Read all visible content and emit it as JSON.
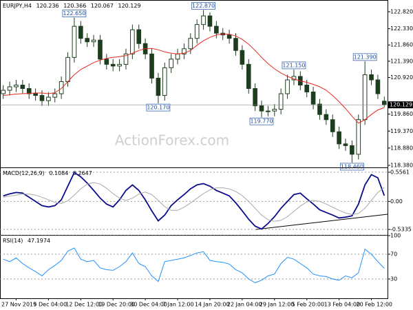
{
  "chart_data": [
    {
      "type": "candlestick",
      "title": "EURJPY,H4",
      "watermark": "ActionForex.com",
      "categories": [
        null,
        null,
        "27 Nov 2019",
        null,
        null,
        null,
        null,
        "5 Dec 04:00",
        null,
        null,
        null,
        null,
        "12 Dec 12:00",
        null,
        null,
        null,
        null,
        "19 Dec 20:00",
        null,
        null,
        null,
        null,
        "30 Dec 04:00",
        null,
        null,
        null,
        null,
        "7 Jan 12:00",
        null,
        null,
        null,
        null,
        "14 Jan 20:00",
        null,
        null,
        null,
        null,
        "22 Jan 04:00",
        null,
        null,
        null,
        null,
        "29 Jan 12:00",
        null,
        null,
        null,
        null,
        "5 Feb 20:00",
        null,
        null,
        null,
        null,
        "13 Feb 04:00",
        null,
        null,
        null,
        null,
        "20 Feb 12:00",
        null,
        null
      ],
      "open": [
        120.45,
        120.55,
        120.65,
        120.7,
        120.6,
        120.45,
        120.4,
        120.25,
        120.35,
        120.45,
        120.8,
        121.5,
        122.4,
        122.05,
        121.95,
        122.0,
        121.45,
        121.3,
        121.25,
        121.3,
        121.6,
        122.3,
        121.9,
        121.6,
        120.9,
        120.4,
        121.2,
        121.45,
        121.6,
        121.75,
        122.05,
        122.45,
        122.7,
        122.4,
        122.2,
        122.15,
        122.05,
        121.7,
        121.3,
        120.6,
        120.1,
        119.95,
        119.95,
        120.0,
        120.45,
        120.85,
        120.95,
        120.7,
        120.5,
        120.15,
        119.85,
        119.7,
        119.35,
        119.0,
        118.95,
        118.7,
        119.7,
        121.0,
        120.85,
        120.236
      ],
      "high": [
        120.7,
        120.8,
        120.85,
        120.85,
        120.75,
        120.6,
        120.55,
        120.5,
        120.6,
        120.95,
        121.65,
        122.65,
        122.55,
        122.2,
        122.15,
        122.15,
        121.6,
        121.45,
        121.45,
        121.75,
        122.45,
        122.45,
        122.05,
        121.75,
        121.05,
        121.35,
        121.6,
        121.75,
        121.9,
        122.2,
        122.6,
        122.87,
        122.8,
        122.55,
        122.35,
        122.3,
        122.2,
        121.85,
        121.45,
        120.75,
        120.25,
        120.1,
        120.15,
        120.6,
        121.0,
        121.15,
        121.1,
        120.85,
        120.65,
        120.3,
        120.0,
        119.85,
        119.5,
        119.15,
        119.1,
        119.85,
        121.39,
        121.15,
        121.0,
        120.366
      ],
      "low": [
        120.3,
        120.4,
        120.5,
        120.45,
        120.3,
        120.25,
        120.1,
        120.1,
        120.2,
        120.3,
        120.65,
        121.35,
        121.9,
        121.8,
        121.8,
        121.3,
        121.15,
        121.1,
        121.1,
        121.15,
        121.45,
        121.75,
        121.45,
        120.75,
        120.17,
        120.25,
        121.05,
        121.3,
        121.45,
        121.6,
        121.9,
        122.3,
        122.25,
        122.05,
        122.0,
        121.9,
        121.55,
        121.15,
        120.45,
        119.95,
        119.77,
        119.8,
        119.8,
        119.85,
        120.3,
        120.7,
        120.55,
        120.35,
        120.0,
        119.7,
        119.55,
        119.2,
        118.85,
        118.8,
        118.46,
        118.55,
        119.55,
        120.7,
        120.3,
        120.067
      ],
      "close": [
        120.55,
        120.65,
        120.7,
        120.6,
        120.45,
        120.4,
        120.25,
        120.35,
        120.45,
        120.8,
        121.5,
        122.4,
        122.05,
        121.95,
        122.0,
        121.45,
        121.3,
        121.25,
        121.3,
        121.6,
        122.3,
        121.9,
        121.6,
        120.9,
        120.4,
        121.2,
        121.45,
        121.6,
        121.75,
        122.05,
        122.45,
        122.7,
        122.4,
        122.2,
        122.15,
        122.05,
        121.7,
        121.3,
        120.6,
        120.1,
        119.95,
        119.95,
        120.0,
        120.45,
        120.85,
        120.95,
        120.7,
        120.5,
        120.15,
        119.85,
        119.7,
        119.35,
        119.0,
        118.95,
        118.7,
        119.7,
        121.0,
        120.85,
        120.45,
        120.129
      ],
      "color": "#1e3d1e",
      "up_color": "#ffffff",
      "series": [
        {
          "color": "#e8261f",
          "values": [
            120.4,
            120.42,
            120.44,
            120.45,
            120.46,
            120.47,
            120.47,
            120.45,
            120.48,
            120.6,
            120.8,
            121.0,
            121.15,
            121.25,
            121.35,
            121.42,
            121.47,
            121.5,
            121.52,
            121.55,
            121.62,
            121.7,
            121.75,
            121.76,
            121.72,
            121.66,
            121.62,
            121.6,
            121.62,
            121.7,
            121.85,
            121.98,
            122.08,
            122.15,
            122.18,
            122.17,
            122.12,
            122.02,
            121.88,
            121.7,
            121.5,
            121.32,
            121.17,
            121.05,
            120.95,
            120.88,
            120.82,
            120.78,
            120.72,
            120.65,
            120.55,
            120.4,
            120.22,
            120.02,
            119.8,
            119.6,
            119.7,
            119.85,
            119.98,
            120.05
          ]
        }
      ],
      "annotations": [
        "122.650",
        "122.870",
        "120.170",
        "121.150",
        "119.770",
        "121.390",
        "118.460"
      ],
      "ylim": [
        118.34,
        123.0
      ],
      "yticks": [
        {
          "value": 122.82,
          "label": "122.820"
        },
        {
          "value": 122.33,
          "label": "122.330"
        },
        {
          "value": 121.86,
          "label": "121.860"
        },
        {
          "value": 121.39,
          "label": "121.390"
        },
        {
          "value": 120.92,
          "label": "120.920"
        },
        {
          "value": 119.86,
          "label": "119.860"
        },
        {
          "value": 119.37,
          "label": "119.370"
        },
        {
          "value": 118.88,
          "label": "118.880"
        },
        {
          "value": 118.38,
          "label": "118.380"
        }
      ],
      "grid": false
    },
    {
      "type": "line",
      "title": "MACD(12,26,9)",
      "series": [
        {
          "color": "#0a0a8c",
          "values": [
            0.105,
            0.144,
            0.17,
            0.158,
            0.08,
            0,
            -0.08,
            -0.105,
            -0.08,
            0.03,
            0.29,
            0.55,
            0.47,
            0.35,
            0.21,
            0.066,
            -0.05,
            -0.105,
            0.03,
            0.21,
            0.315,
            0.21,
            0.03,
            -0.18,
            -0.37,
            -0.26,
            -0.08,
            0.03,
            0.13,
            0.24,
            0.315,
            0.34,
            0.29,
            0.21,
            0.158,
            0.105,
            -0.026,
            -0.18,
            -0.34,
            -0.47,
            -0.525,
            -0.42,
            -0.29,
            -0.13,
            0,
            0.13,
            0.158,
            0.05,
            -0.05,
            -0.16,
            -0.21,
            -0.26,
            -0.315,
            -0.3,
            -0.275,
            -0.05,
            0.315,
            0.51,
            0.45,
            0.1084
          ]
        },
        {
          "color": "#a8a8a8",
          "values": [
            0.08,
            0.1,
            0.12,
            0.14,
            0.14,
            0.12,
            0.08,
            0.03,
            -0.02,
            -0.04,
            0.01,
            0.12,
            0.24,
            0.33,
            0.36,
            0.33,
            0.25,
            0.15,
            0.06,
            0.02,
            0.06,
            0.14,
            0.18,
            0.13,
            0.02,
            -0.1,
            -0.17,
            -0.17,
            -0.11,
            -0.03,
            0.06,
            0.15,
            0.22,
            0.26,
            0.26,
            0.24,
            0.19,
            0.11,
            0.0,
            -0.13,
            -0.26,
            -0.35,
            -0.38,
            -0.36,
            -0.29,
            -0.19,
            -0.09,
            -0.01,
            0.02,
            0.0,
            -0.05,
            -0.11,
            -0.17,
            -0.22,
            -0.25,
            -0.23,
            -0.13,
            0.02,
            0.17,
            0.2647
          ]
        }
      ],
      "ylim": [
        -0.625,
        0.635
      ],
      "yticks": [
        0.5561,
        {
          "value": 0,
          "label": "0.00"
        },
        -0.5335
      ],
      "grid": true
    },
    {
      "type": "line",
      "title": "RSI(14)",
      "series": [
        {
          "color": "#1e90ff",
          "values": [
            62,
            58,
            64,
            55,
            48,
            42,
            35,
            45,
            52,
            60,
            75,
            80,
            62,
            58,
            60,
            48,
            45,
            44,
            50,
            58,
            72,
            55,
            50,
            35,
            26,
            58,
            60,
            62,
            64,
            68,
            72,
            74,
            60,
            58,
            57,
            54,
            45,
            40,
            30,
            24,
            28,
            35,
            38,
            55,
            65,
            62,
            55,
            48,
            38,
            35,
            34,
            30,
            28,
            35,
            32,
            40,
            78,
            70,
            58,
            47.1974
          ]
        }
      ],
      "ylim": [
        0,
        100
      ],
      "yticks": [
        100,
        70,
        30
      ],
      "grid": true
    }
  ]
}
